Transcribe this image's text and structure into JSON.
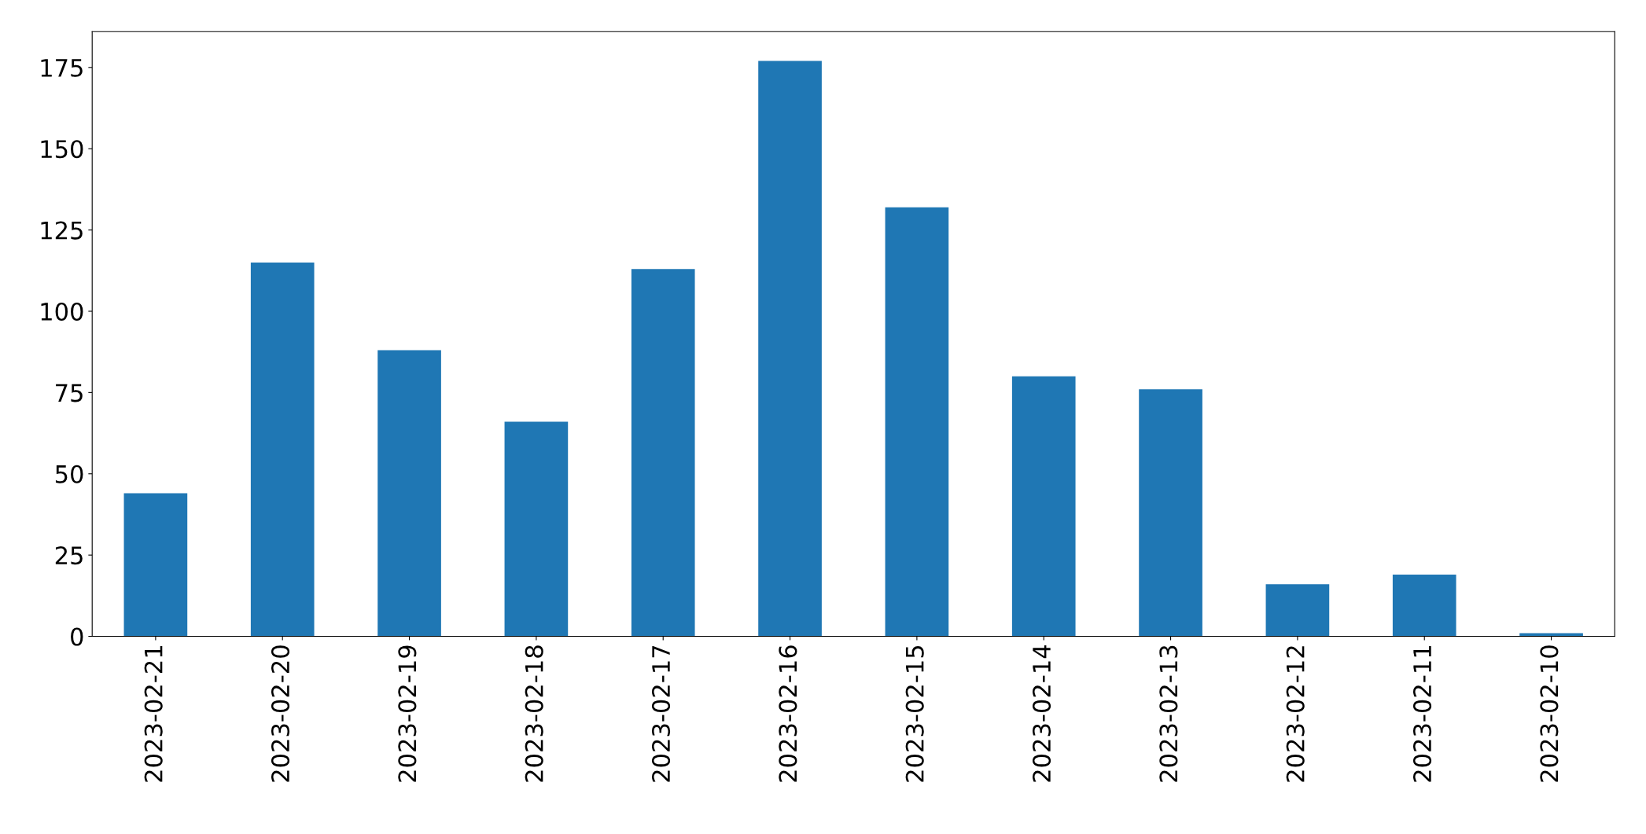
{
  "chart_data": {
    "type": "bar",
    "categories": [
      "2023-02-21",
      "2023-02-20",
      "2023-02-19",
      "2023-02-18",
      "2023-02-17",
      "2023-02-16",
      "2023-02-15",
      "2023-02-14",
      "2023-02-13",
      "2023-02-12",
      "2023-02-11",
      "2023-02-10"
    ],
    "values": [
      44,
      115,
      88,
      66,
      113,
      177,
      132,
      80,
      76,
      16,
      19,
      1
    ],
    "color": "#1f77b4",
    "ylim": [
      0,
      186
    ],
    "yticks": [
      0,
      25,
      50,
      75,
      100,
      125,
      150,
      175
    ],
    "grid": false,
    "legend": false
  }
}
